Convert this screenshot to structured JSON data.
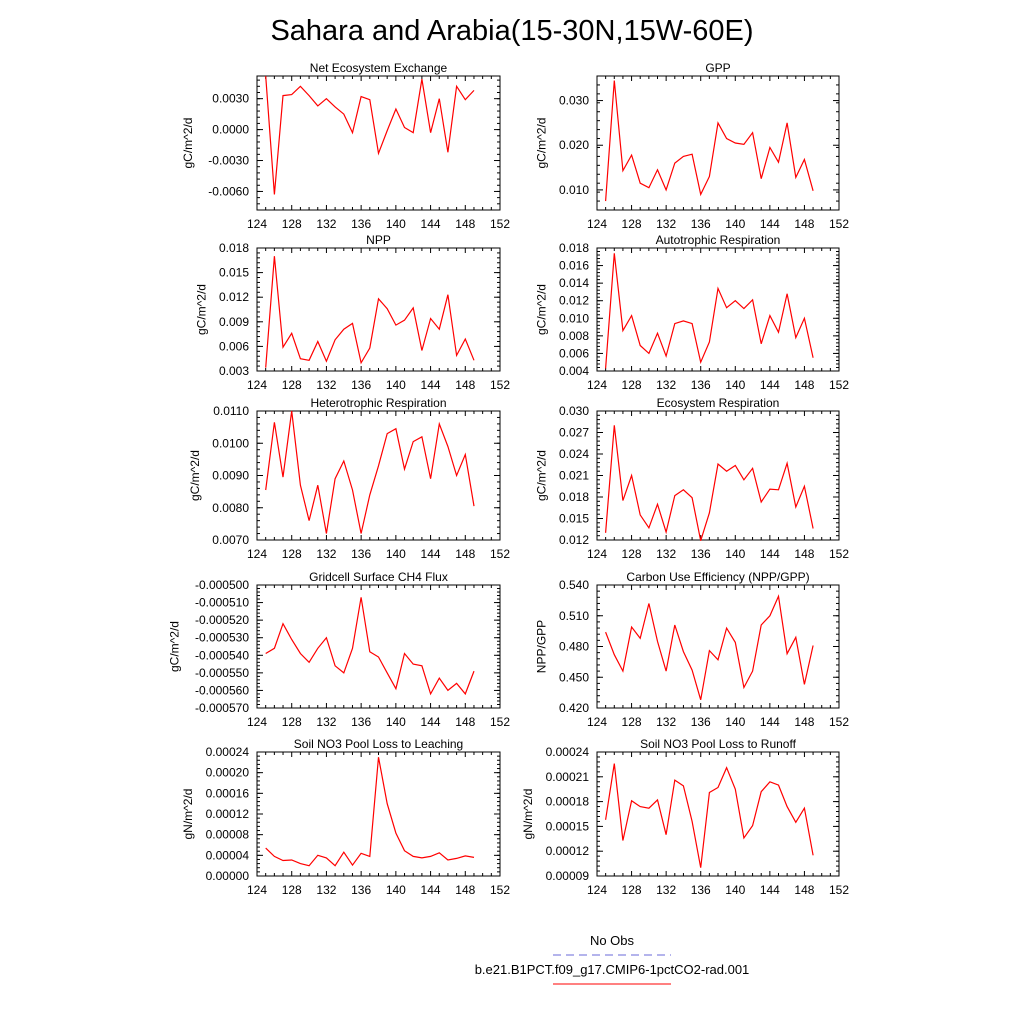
{
  "figure": {
    "title": "Sahara and Arabia(15-30N,15W-60E)",
    "line_color": "#ff0000",
    "obs_color": "#6a6ad8"
  },
  "legend": {
    "items": [
      {
        "label": "No Obs",
        "style": "dashed",
        "color": "#6a6ad8"
      },
      {
        "label": "b.e21.B1PCT.f09_g17.CMIP6-1pctCO2-rad.001",
        "style": "solid",
        "color": "#ff0000"
      }
    ]
  },
  "chart_data": [
    {
      "type": "line",
      "title": "Net Ecosystem Exchange",
      "ylabel": "gC/m^2/d",
      "xlim": [
        124,
        152
      ],
      "ylim": [
        -0.0078,
        0.0052
      ],
      "xticks": [
        124,
        128,
        132,
        136,
        140,
        144,
        148,
        152
      ],
      "yticks": [
        -0.006,
        -0.003,
        0.0,
        0.003
      ],
      "ytick_labels": [
        "-0.0060",
        "-0.0030",
        "0.0000",
        "0.0030"
      ],
      "x": [
        125,
        126,
        127,
        128,
        129,
        130,
        131,
        132,
        133,
        134,
        135,
        136,
        137,
        138,
        139,
        140,
        141,
        142,
        143,
        144,
        145,
        146,
        147,
        148,
        149
      ],
      "values": [
        0.0052,
        -0.0063,
        0.0033,
        0.0034,
        0.0042,
        0.0033,
        0.0023,
        0.003,
        0.0022,
        0.0015,
        -0.0003,
        0.0032,
        0.0029,
        -0.0023,
        -0.0001,
        0.002,
        0.0002,
        -0.0003,
        0.0049,
        -0.0003,
        0.003,
        -0.0022,
        0.0042,
        0.0029,
        0.0038
      ]
    },
    {
      "type": "line",
      "title": "GPP",
      "ylabel": "gC/m^2/d",
      "xlim": [
        124,
        152
      ],
      "ylim": [
        0.0055,
        0.0355
      ],
      "xticks": [
        124,
        128,
        132,
        136,
        140,
        144,
        148,
        152
      ],
      "yticks": [
        0.01,
        0.02,
        0.03
      ],
      "ytick_labels": [
        "0.010",
        "0.020",
        "0.030"
      ],
      "x": [
        125,
        126,
        127,
        128,
        129,
        130,
        131,
        132,
        133,
        134,
        135,
        136,
        137,
        138,
        139,
        140,
        141,
        142,
        143,
        144,
        145,
        146,
        147,
        148,
        149
      ],
      "values": [
        0.0075,
        0.0345,
        0.0143,
        0.0178,
        0.0115,
        0.0105,
        0.0145,
        0.01,
        0.016,
        0.0175,
        0.018,
        0.009,
        0.013,
        0.025,
        0.0215,
        0.0205,
        0.0202,
        0.0228,
        0.0125,
        0.0195,
        0.0162,
        0.025,
        0.0128,
        0.0168,
        0.0098
      ]
    },
    {
      "type": "line",
      "title": "NPP",
      "ylabel": "gC/m^2/d",
      "xlim": [
        124,
        152
      ],
      "ylim": [
        0.003,
        0.018
      ],
      "xticks": [
        124,
        128,
        132,
        136,
        140,
        144,
        148,
        152
      ],
      "yticks": [
        0.003,
        0.006,
        0.009,
        0.012,
        0.015,
        0.018
      ],
      "ytick_labels": [
        "0.003",
        "0.006",
        "0.009",
        "0.012",
        "0.015",
        "0.018"
      ],
      "x": [
        125,
        126,
        127,
        128,
        129,
        130,
        131,
        132,
        133,
        134,
        135,
        136,
        137,
        138,
        139,
        140,
        141,
        142,
        143,
        144,
        145,
        146,
        147,
        148,
        149
      ],
      "values": [
        0.0034,
        0.017,
        0.0059,
        0.0076,
        0.0045,
        0.0043,
        0.0066,
        0.0042,
        0.0068,
        0.0081,
        0.0088,
        0.004,
        0.0058,
        0.0118,
        0.0106,
        0.0086,
        0.0092,
        0.0107,
        0.0055,
        0.0094,
        0.0081,
        0.0123,
        0.0049,
        0.0069,
        0.0043
      ]
    },
    {
      "type": "line",
      "title": "Autotrophic Respiration",
      "ylabel": "gC/m^2/d",
      "xlim": [
        124,
        152
      ],
      "ylim": [
        0.004,
        0.018
      ],
      "xticks": [
        124,
        128,
        132,
        136,
        140,
        144,
        148,
        152
      ],
      "yticks": [
        0.004,
        0.006,
        0.008,
        0.01,
        0.012,
        0.014,
        0.016,
        0.018
      ],
      "ytick_labels": [
        "0.004",
        "0.006",
        "0.008",
        "0.010",
        "0.012",
        "0.014",
        "0.016",
        "0.018"
      ],
      "x": [
        125,
        126,
        127,
        128,
        129,
        130,
        131,
        132,
        133,
        134,
        135,
        136,
        137,
        138,
        139,
        140,
        141,
        142,
        143,
        144,
        145,
        146,
        147,
        148,
        149
      ],
      "values": [
        0.0043,
        0.0174,
        0.0086,
        0.0103,
        0.0069,
        0.006,
        0.0083,
        0.0057,
        0.0094,
        0.0097,
        0.0094,
        0.005,
        0.0073,
        0.0134,
        0.0112,
        0.012,
        0.0111,
        0.0121,
        0.0071,
        0.0103,
        0.0084,
        0.0128,
        0.0078,
        0.01,
        0.0055
      ]
    },
    {
      "type": "line",
      "title": "Heterotrophic Respiration",
      "ylabel": "gC/m^2/d",
      "xlim": [
        124,
        152
      ],
      "ylim": [
        0.007,
        0.011
      ],
      "xticks": [
        124,
        128,
        132,
        136,
        140,
        144,
        148,
        152
      ],
      "yticks": [
        0.007,
        0.008,
        0.009,
        0.01,
        0.011
      ],
      "ytick_labels": [
        "0.0070",
        "0.0080",
        "0.0090",
        "0.0100",
        "0.0110"
      ],
      "x": [
        125,
        126,
        127,
        128,
        129,
        130,
        131,
        132,
        133,
        134,
        135,
        136,
        137,
        138,
        139,
        140,
        141,
        142,
        143,
        144,
        145,
        146,
        147,
        148,
        149
      ],
      "values": [
        0.00855,
        0.01065,
        0.00895,
        0.011,
        0.0087,
        0.0076,
        0.0087,
        0.0072,
        0.0089,
        0.00945,
        0.00855,
        0.0072,
        0.0084,
        0.0093,
        0.0103,
        0.01045,
        0.0092,
        0.01005,
        0.0102,
        0.0089,
        0.0106,
        0.0099,
        0.009,
        0.00965,
        0.00805
      ]
    },
    {
      "type": "line",
      "title": "Ecosystem Respiration",
      "ylabel": "gC/m^2/d",
      "xlim": [
        124,
        152
      ],
      "ylim": [
        0.012,
        0.03
      ],
      "xticks": [
        124,
        128,
        132,
        136,
        140,
        144,
        148,
        152
      ],
      "yticks": [
        0.012,
        0.015,
        0.018,
        0.021,
        0.024,
        0.027,
        0.03
      ],
      "ytick_labels": [
        "0.012",
        "0.015",
        "0.018",
        "0.021",
        "0.024",
        "0.027",
        "0.030"
      ],
      "x": [
        125,
        126,
        127,
        128,
        129,
        130,
        131,
        132,
        133,
        134,
        135,
        136,
        137,
        138,
        139,
        140,
        141,
        142,
        143,
        144,
        145,
        146,
        147,
        148,
        149
      ],
      "values": [
        0.013,
        0.028,
        0.0175,
        0.021,
        0.0155,
        0.0137,
        0.017,
        0.0131,
        0.0182,
        0.019,
        0.0179,
        0.0119,
        0.0158,
        0.0226,
        0.0216,
        0.0224,
        0.0204,
        0.022,
        0.0173,
        0.0191,
        0.019,
        0.0227,
        0.0166,
        0.0195,
        0.0136
      ]
    },
    {
      "type": "line",
      "title": "Gridcell Surface CH4 Flux",
      "ylabel": "gC/m^2/d",
      "xlim": [
        124,
        152
      ],
      "ylim": [
        -0.00057,
        -0.0005
      ],
      "xticks": [
        124,
        128,
        132,
        136,
        140,
        144,
        148,
        152
      ],
      "yticks": [
        -0.00057,
        -0.00056,
        -0.00055,
        -0.00054,
        -0.00053,
        -0.00052,
        -0.00051,
        -0.0005
      ],
      "ytick_labels": [
        "-0.000570",
        "-0.000560",
        "-0.000550",
        "-0.000540",
        "-0.000530",
        "-0.000520",
        "-0.000510",
        "-0.000500"
      ],
      "x": [
        125,
        126,
        127,
        128,
        129,
        130,
        131,
        132,
        133,
        134,
        135,
        136,
        137,
        138,
        139,
        140,
        141,
        142,
        143,
        144,
        145,
        146,
        147,
        148,
        149
      ],
      "values": [
        -0.000539,
        -0.000536,
        -0.000522,
        -0.000531,
        -0.000539,
        -0.000544,
        -0.000536,
        -0.00053,
        -0.000546,
        -0.00055,
        -0.000536,
        -0.000507,
        -0.000538,
        -0.000541,
        -0.00055,
        -0.000559,
        -0.000539,
        -0.000545,
        -0.000546,
        -0.000562,
        -0.000553,
        -0.00056,
        -0.000556,
        -0.000562,
        -0.000549
      ]
    },
    {
      "type": "line",
      "title": "Carbon Use Efficiency (NPP/GPP)",
      "ylabel": "NPP/GPP",
      "xlim": [
        124,
        152
      ],
      "ylim": [
        0.42,
        0.54
      ],
      "xticks": [
        124,
        128,
        132,
        136,
        140,
        144,
        148,
        152
      ],
      "yticks": [
        0.42,
        0.45,
        0.48,
        0.51,
        0.54
      ],
      "ytick_labels": [
        "0.420",
        "0.450",
        "0.480",
        "0.510",
        "0.540"
      ],
      "x": [
        125,
        126,
        127,
        128,
        129,
        130,
        131,
        132,
        133,
        134,
        135,
        136,
        137,
        138,
        139,
        140,
        141,
        142,
        143,
        144,
        145,
        146,
        147,
        148,
        149
      ],
      "values": [
        0.494,
        0.472,
        0.456,
        0.499,
        0.488,
        0.522,
        0.485,
        0.456,
        0.501,
        0.475,
        0.457,
        0.428,
        0.476,
        0.467,
        0.498,
        0.484,
        0.44,
        0.456,
        0.501,
        0.51,
        0.529,
        0.473,
        0.489,
        0.443,
        0.481
      ]
    },
    {
      "type": "line",
      "title": "Soil NO3 Pool Loss to Leaching",
      "ylabel": "gN/m^2/d",
      "xlim": [
        124,
        152
      ],
      "ylim": [
        0.0,
        0.00024
      ],
      "xticks": [
        124,
        128,
        132,
        136,
        140,
        144,
        148,
        152
      ],
      "yticks": [
        0.0,
        4e-05,
        8e-05,
        0.00012,
        0.00016,
        0.0002,
        0.00024
      ],
      "ytick_labels": [
        "0.00000",
        "0.00004",
        "0.00008",
        "0.00012",
        "0.00016",
        "0.00020",
        "0.00024"
      ],
      "x": [
        125,
        126,
        127,
        128,
        129,
        130,
        131,
        132,
        133,
        134,
        135,
        136,
        137,
        138,
        139,
        140,
        141,
        142,
        143,
        144,
        145,
        146,
        147,
        148,
        149
      ],
      "values": [
        5.4e-05,
        3.8e-05,
        3e-05,
        3.1e-05,
        2.4e-05,
        2e-05,
        4e-05,
        3.5e-05,
        2e-05,
        4.6e-05,
        2.1e-05,
        4.4e-05,
        3.8e-05,
        0.00023,
        0.00014,
        8.3e-05,
        4.9e-05,
        3.8e-05,
        3.5e-05,
        3.8e-05,
        4.5e-05,
        3.1e-05,
        3.4e-05,
        3.9e-05,
        3.6e-05
      ]
    },
    {
      "type": "line",
      "title": "Soil NO3 Pool Loss to Runoff",
      "ylabel": "gN/m^2/d",
      "xlim": [
        124,
        152
      ],
      "ylim": [
        9e-05,
        0.00024
      ],
      "xticks": [
        124,
        128,
        132,
        136,
        140,
        144,
        148,
        152
      ],
      "yticks": [
        9e-05,
        0.00012,
        0.00015,
        0.00018,
        0.00021,
        0.00024
      ],
      "ytick_labels": [
        "0.00009",
        "0.00012",
        "0.00015",
        "0.00018",
        "0.00021",
        "0.00024"
      ],
      "x": [
        125,
        126,
        127,
        128,
        129,
        130,
        131,
        132,
        133,
        134,
        135,
        136,
        137,
        138,
        139,
        140,
        141,
        142,
        143,
        144,
        145,
        146,
        147,
        148,
        149
      ],
      "values": [
        0.000158,
        0.000226,
        0.000133,
        0.000181,
        0.000174,
        0.000172,
        0.000182,
        0.00014,
        0.000206,
        0.000199,
        0.000156,
        0.0001,
        0.000191,
        0.000197,
        0.000221,
        0.000195,
        0.000136,
        0.000151,
        0.000192,
        0.000204,
        0.0002,
        0.000174,
        0.000155,
        0.000172,
        0.000115
      ]
    }
  ]
}
